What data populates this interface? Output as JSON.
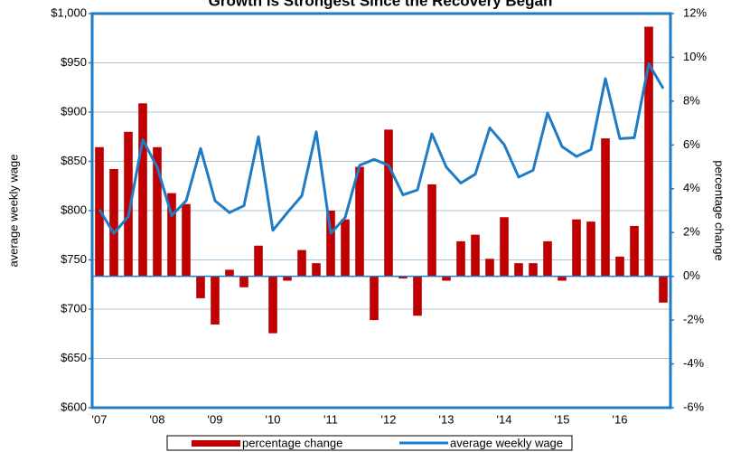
{
  "chart_data": {
    "type": "bar_line",
    "title": "Growth is Strongest Since the Recovery Began",
    "ylabel": "average weekly wage",
    "y2label": "percentage change",
    "categories": [
      "'07",
      null,
      null,
      null,
      "'08",
      null,
      null,
      null,
      "'09",
      null,
      null,
      null,
      "'10",
      null,
      null,
      null,
      "'11",
      null,
      null,
      null,
      "'12",
      null,
      null,
      null,
      "'13",
      null,
      null,
      null,
      "'14",
      null,
      null,
      null,
      "'15",
      null,
      null,
      null,
      "'16",
      null,
      null,
      null
    ],
    "series": [
      {
        "name": "percentage change",
        "type": "bar",
        "axis": "y2",
        "color": "#c00000",
        "values": [
          5.9,
          4.9,
          6.6,
          7.9,
          5.9,
          3.8,
          3.3,
          -1.0,
          -2.2,
          0.3,
          -0.5,
          1.4,
          -2.6,
          -0.2,
          1.2,
          0.6,
          3.0,
          2.6,
          5.0,
          -2.0,
          6.7,
          -0.1,
          -1.8,
          4.2,
          -0.2,
          1.6,
          1.9,
          0.8,
          2.7,
          0.6,
          0.6,
          1.6,
          -0.2,
          2.6,
          2.5,
          6.3,
          0.9,
          2.3,
          11.4,
          -1.2
        ]
      },
      {
        "name": "average weekly wage",
        "type": "line",
        "axis": "y",
        "color": "#1f7bc4",
        "values": [
          801,
          777,
          794,
          872,
          844,
          795,
          810,
          863,
          810,
          798,
          805,
          875,
          780,
          798,
          815,
          880,
          777,
          793,
          846,
          852,
          846,
          816,
          821,
          878,
          844,
          828,
          837,
          884,
          867,
          834,
          841,
          899,
          865,
          855,
          862,
          934,
          873,
          874,
          949,
          924
        ]
      }
    ],
    "ylim": [
      600,
      1000
    ],
    "yticks": [
      {
        "value": 600,
        "label": "$600"
      },
      {
        "value": 650,
        "label": "$650"
      },
      {
        "value": 700,
        "label": "$700"
      },
      {
        "value": 750,
        "label": "$750"
      },
      {
        "value": 800,
        "label": "$800"
      },
      {
        "value": 850,
        "label": "$850"
      },
      {
        "value": 900,
        "label": "$900"
      },
      {
        "value": 950,
        "label": "$950"
      },
      {
        "value": 1000,
        "label": "$1,000"
      }
    ],
    "y2lim": [
      -6,
      12
    ],
    "y2ticks": [
      {
        "value": -6,
        "label": "-6%"
      },
      {
        "value": -4,
        "label": "-4%"
      },
      {
        "value": -2,
        "label": "-2%"
      },
      {
        "value": 0,
        "label": "0%"
      },
      {
        "value": 2,
        "label": "2%"
      },
      {
        "value": 4,
        "label": "4%"
      },
      {
        "value": 6,
        "label": "6%"
      },
      {
        "value": 8,
        "label": "8%"
      },
      {
        "value": 10,
        "label": "10%"
      },
      {
        "value": 12,
        "label": "12%"
      }
    ],
    "grid": true,
    "legend": "bottom"
  }
}
